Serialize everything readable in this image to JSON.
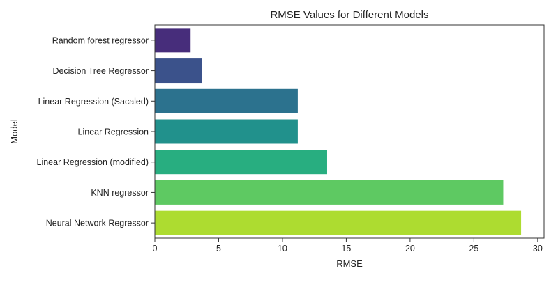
{
  "chart_data": {
    "type": "bar",
    "orientation": "horizontal",
    "title": "RMSE Values for Different Models",
    "xlabel": "RMSE",
    "ylabel": "Model",
    "xlim": [
      0,
      30.5
    ],
    "xticks": [
      0,
      5,
      10,
      15,
      20,
      25,
      30
    ],
    "grid": false,
    "categories": [
      "Random forest regressor",
      "Decision Tree Regressor",
      "Linear Regression (Sacaled)",
      "Linear Regression",
      "Linear Regression (modified)",
      "KNN regressor",
      "Neural Network Regressor"
    ],
    "values": [
      2.8,
      3.7,
      11.2,
      11.2,
      13.5,
      27.3,
      28.7
    ],
    "colors": [
      "#472d7b",
      "#3b528b",
      "#2c728e",
      "#21918c",
      "#28ae80",
      "#5ec962",
      "#addc30"
    ]
  }
}
